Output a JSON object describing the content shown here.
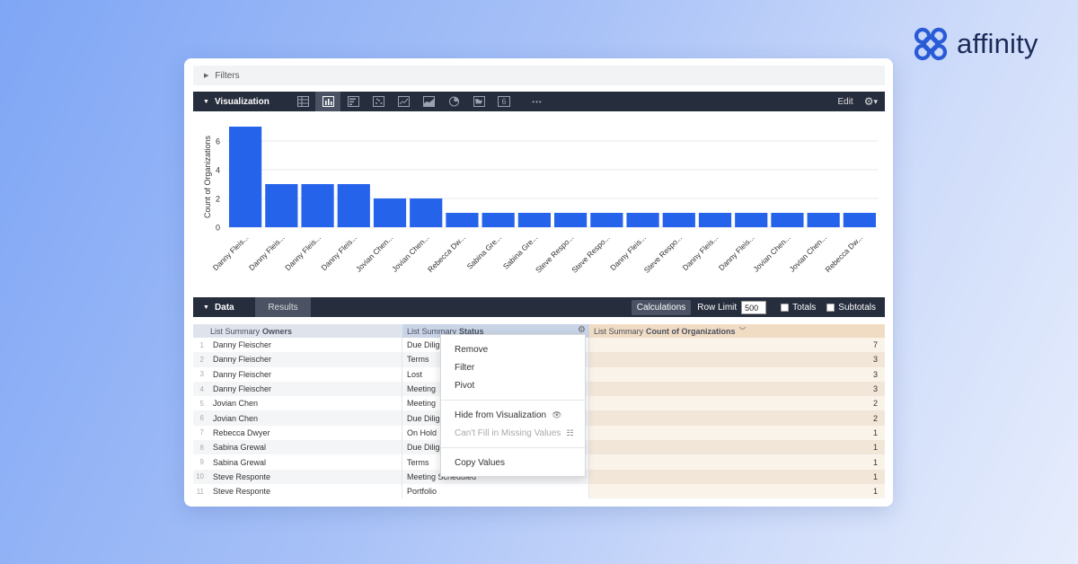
{
  "brand": {
    "name": "affinity",
    "color": "#2a5bd7"
  },
  "filters": {
    "label": "Filters"
  },
  "visualization": {
    "title": "Visualization",
    "icons": [
      "table-icon",
      "bar-chart-icon",
      "column-chart-icon",
      "scatter-icon",
      "line-chart-icon",
      "area-chart-icon",
      "pie-chart-icon",
      "map-icon",
      "single-value-icon",
      "more-icon"
    ],
    "active_icon": "bar-chart-icon",
    "single_value_glyph": "6",
    "more_glyph": "•••",
    "edit_label": "Edit",
    "gear_glyph": "⚙",
    "caret_glyph": "▾"
  },
  "chart_data": {
    "type": "bar",
    "ylabel": "Count of Organizations",
    "ylim": [
      0,
      7
    ],
    "yticks": [
      0,
      2,
      4,
      6
    ],
    "grid": true,
    "bar_color": "#2563eb",
    "categories": [
      "Danny Fleis...",
      "Danny Fleis...",
      "Danny Fleis...",
      "Danny Fleis...",
      "Jovian Chen...",
      "Jovian Chen...",
      "Rebecca Dw...",
      "Sabina Gre...",
      "Sabina Gre...",
      "Steve Respo...",
      "Steve Respo...",
      "Danny Fleis...",
      "Steve Respo...",
      "Danny Fleis...",
      "Danny Fleis...",
      "Jovian Chen...",
      "Jovian Chen...",
      "Rebecca Dw..."
    ],
    "values": [
      7,
      3,
      3,
      3,
      2,
      2,
      1,
      1,
      1,
      1,
      1,
      1,
      1,
      1,
      1,
      1,
      1,
      1
    ]
  },
  "data": {
    "title": "Data",
    "results_tab": "Results",
    "calculations_label": "Calculations",
    "row_limit_label": "Row Limit",
    "row_limit_value": "500",
    "totals_label": "Totals",
    "subtotals_label": "Subtotals"
  },
  "table": {
    "headers": {
      "owners_prefix": "List Summary",
      "owners": "Owners",
      "status_prefix": "List Summary",
      "status": "Status",
      "count_prefix": "List Summary",
      "count": "Count of Organizations",
      "sort_glyph": "﹀"
    },
    "rows": [
      {
        "n": "1",
        "owner": "Danny Fleischer",
        "status": "Due Diligence",
        "count": "7"
      },
      {
        "n": "2",
        "owner": "Danny Fleischer",
        "status": "Terms",
        "count": "3"
      },
      {
        "n": "3",
        "owner": "Danny Fleischer",
        "status": "Lost",
        "count": "3"
      },
      {
        "n": "4",
        "owner": "Danny Fleischer",
        "status": "Meeting",
        "count": "3"
      },
      {
        "n": "5",
        "owner": "Jovian Chen",
        "status": "Meeting",
        "count": "2"
      },
      {
        "n": "6",
        "owner": "Jovian Chen",
        "status": "Due Diligence",
        "count": "2"
      },
      {
        "n": "7",
        "owner": "Rebecca Dwyer",
        "status": "On Hold",
        "count": "1"
      },
      {
        "n": "8",
        "owner": "Sabina Grewal",
        "status": "Due Diligence",
        "count": "1"
      },
      {
        "n": "9",
        "owner": "Sabina Grewal",
        "status": "Terms",
        "count": "1"
      },
      {
        "n": "10",
        "owner": "Steve Responte",
        "status": "Meeting Scheduled",
        "count": "1"
      },
      {
        "n": "11",
        "owner": "Steve Responte",
        "status": "Portfolio",
        "count": "1"
      }
    ]
  },
  "context_menu": {
    "remove": "Remove",
    "filter": "Filter",
    "pivot": "Pivot",
    "hide_from_viz": "Hide from Visualization",
    "hide_icon_glyph": "👁",
    "cant_fill": "Can't Fill in Missing Values",
    "cant_fill_icon_glyph": "☷",
    "copy_values": "Copy Values"
  }
}
